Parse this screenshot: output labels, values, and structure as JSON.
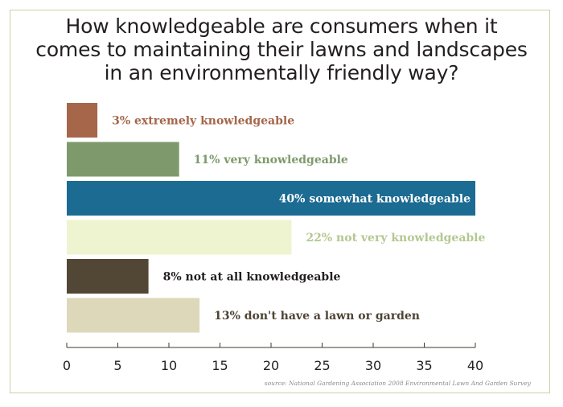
{
  "title_lines": [
    "How knowledgeable are consumers when it",
    "comes to maintaining their lawns and landscapes",
    "in an environmentally friendly way?"
  ],
  "source": "source: National Gardening Association 2008 Environmental Lawn And Garden Survey",
  "chart_data": {
    "type": "bar",
    "orientation": "horizontal",
    "title": "How knowledgeable are consumers when it comes to maintaining their lawns and landscapes in an environmentally friendly way?",
    "categories": [
      "3% extremely knowledgeable",
      "11% very knowledgeable",
      "40% somewhat knowledgeable",
      "22% not very knowledgeable",
      "8% not at all knowledgeable",
      "13% don't have a lawn or garden"
    ],
    "values": [
      3,
      11,
      40,
      22,
      8,
      13
    ],
    "colors": [
      "#a5664a",
      "#7e9a6c",
      "#1c6b92",
      "#eef4cf",
      "#524635",
      "#ddd8b9"
    ],
    "label_colors": [
      "#a5664a",
      "#7e9a6c",
      "#ffffff",
      "#b3c890",
      "#231f20",
      "#4d4434"
    ],
    "label_inside": [
      false,
      false,
      true,
      false,
      false,
      false
    ],
    "xlim": [
      0,
      40
    ],
    "xticks": [
      0,
      5,
      10,
      15,
      20,
      25,
      30,
      35,
      40
    ],
    "xlabel": "",
    "ylabel": "",
    "grid": false,
    "legend": "none",
    "axis_color": "#3f3a32"
  }
}
